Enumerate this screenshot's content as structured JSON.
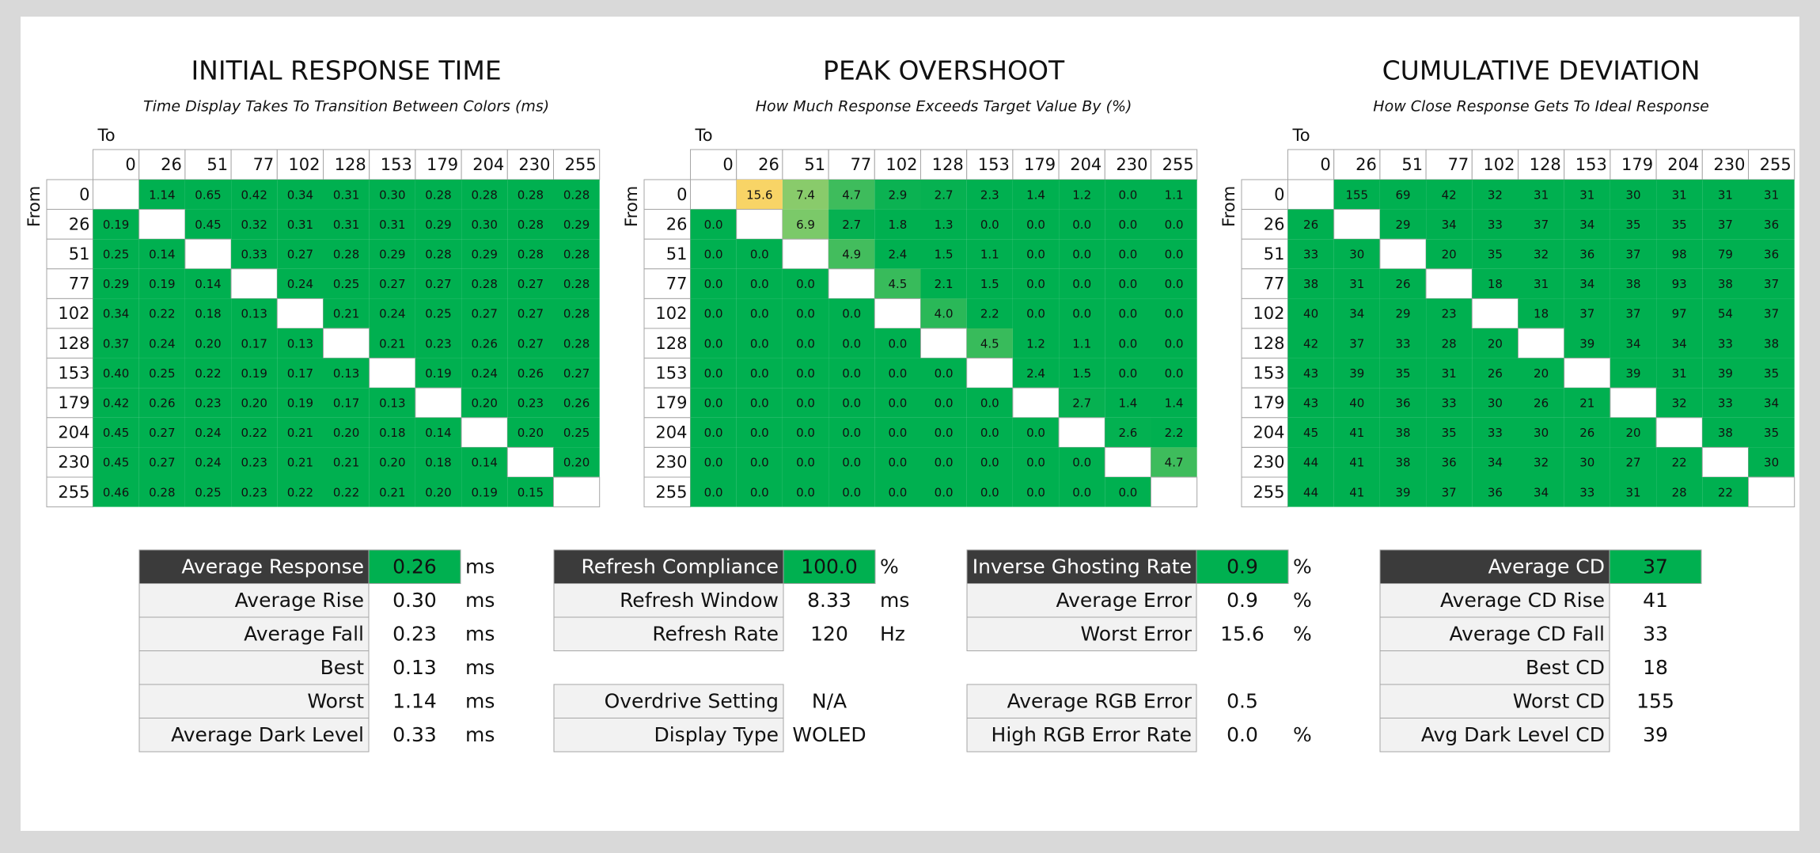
{
  "panels": [
    {
      "title": "INITIAL RESPONSE TIME",
      "subtitle": "Time Display Takes To Transition Between Colors (ms)",
      "to_label": "To",
      "from_label": "From",
      "levels": [
        0,
        26,
        51,
        77,
        102,
        128,
        153,
        179,
        204,
        230,
        255
      ],
      "cells": [
        [
          null,
          "1.14",
          "0.65",
          "0.42",
          "0.34",
          "0.31",
          "0.30",
          "0.28",
          "0.28",
          "0.28",
          "0.28"
        ],
        [
          "0.19",
          null,
          "0.45",
          "0.32",
          "0.31",
          "0.31",
          "0.31",
          "0.29",
          "0.30",
          "0.28",
          "0.29"
        ],
        [
          "0.25",
          "0.14",
          null,
          "0.33",
          "0.27",
          "0.28",
          "0.29",
          "0.28",
          "0.29",
          "0.28",
          "0.28"
        ],
        [
          "0.29",
          "0.19",
          "0.14",
          null,
          "0.24",
          "0.25",
          "0.27",
          "0.27",
          "0.28",
          "0.27",
          "0.28"
        ],
        [
          "0.34",
          "0.22",
          "0.18",
          "0.13",
          null,
          "0.21",
          "0.24",
          "0.25",
          "0.27",
          "0.27",
          "0.28"
        ],
        [
          "0.37",
          "0.24",
          "0.20",
          "0.17",
          "0.13",
          null,
          "0.21",
          "0.23",
          "0.26",
          "0.27",
          "0.28"
        ],
        [
          "0.40",
          "0.25",
          "0.22",
          "0.19",
          "0.17",
          "0.13",
          null,
          "0.19",
          "0.24",
          "0.26",
          "0.27"
        ],
        [
          "0.42",
          "0.26",
          "0.23",
          "0.20",
          "0.19",
          "0.17",
          "0.13",
          null,
          "0.20",
          "0.23",
          "0.26"
        ],
        [
          "0.45",
          "0.27",
          "0.24",
          "0.22",
          "0.21",
          "0.20",
          "0.18",
          "0.14",
          null,
          "0.20",
          "0.25"
        ],
        [
          "0.45",
          "0.27",
          "0.24",
          "0.23",
          "0.21",
          "0.21",
          "0.20",
          "0.18",
          "0.14",
          null,
          "0.20"
        ],
        [
          "0.46",
          "0.28",
          "0.25",
          "0.23",
          "0.22",
          "0.22",
          "0.21",
          "0.20",
          "0.19",
          "0.15",
          null
        ]
      ]
    },
    {
      "title": "PEAK OVERSHOOT",
      "subtitle": "How Much Response Exceeds Target Value By (%)",
      "to_label": "To",
      "from_label": "From",
      "levels": [
        0,
        26,
        51,
        77,
        102,
        128,
        153,
        179,
        204,
        230,
        255
      ],
      "cells": [
        [
          null,
          "15.6",
          "7.4",
          "4.7",
          "2.9",
          "2.7",
          "2.3",
          "1.4",
          "1.2",
          "0.0",
          "1.1"
        ],
        [
          "0.0",
          null,
          "6.9",
          "2.7",
          "1.8",
          "1.3",
          "0.0",
          "0.0",
          "0.0",
          "0.0",
          "0.0"
        ],
        [
          "0.0",
          "0.0",
          null,
          "4.9",
          "2.4",
          "1.5",
          "1.1",
          "0.0",
          "0.0",
          "0.0",
          "0.0"
        ],
        [
          "0.0",
          "0.0",
          "0.0",
          null,
          "4.5",
          "2.1",
          "1.5",
          "0.0",
          "0.0",
          "0.0",
          "0.0"
        ],
        [
          "0.0",
          "0.0",
          "0.0",
          "0.0",
          null,
          "4.0",
          "2.2",
          "0.0",
          "0.0",
          "0.0",
          "0.0"
        ],
        [
          "0.0",
          "0.0",
          "0.0",
          "0.0",
          "0.0",
          null,
          "4.5",
          "1.2",
          "1.1",
          "0.0",
          "0.0"
        ],
        [
          "0.0",
          "0.0",
          "0.0",
          "0.0",
          "0.0",
          "0.0",
          null,
          "2.4",
          "1.5",
          "0.0",
          "0.0"
        ],
        [
          "0.0",
          "0.0",
          "0.0",
          "0.0",
          "0.0",
          "0.0",
          "0.0",
          null,
          "2.7",
          "1.4",
          "1.4"
        ],
        [
          "0.0",
          "0.0",
          "0.0",
          "0.0",
          "0.0",
          "0.0",
          "0.0",
          "0.0",
          null,
          "2.6",
          "2.2"
        ],
        [
          "0.0",
          "0.0",
          "0.0",
          "0.0",
          "0.0",
          "0.0",
          "0.0",
          "0.0",
          "0.0",
          null,
          "4.7"
        ],
        [
          "0.0",
          "0.0",
          "0.0",
          "0.0",
          "0.0",
          "0.0",
          "0.0",
          "0.0",
          "0.0",
          "0.0",
          null
        ]
      ]
    },
    {
      "title": "CUMULATIVE DEVIATION",
      "subtitle": "How Close Response Gets To Ideal Response",
      "to_label": "To",
      "from_label": "From",
      "levels": [
        0,
        26,
        51,
        77,
        102,
        128,
        153,
        179,
        204,
        230,
        255
      ],
      "cells": [
        [
          null,
          155,
          69,
          42,
          32,
          31,
          31,
          30,
          31,
          31,
          31
        ],
        [
          26,
          null,
          29,
          34,
          33,
          37,
          34,
          35,
          35,
          37,
          36
        ],
        [
          33,
          30,
          null,
          20,
          35,
          32,
          36,
          37,
          98,
          79,
          36
        ],
        [
          38,
          31,
          26,
          null,
          18,
          31,
          34,
          38,
          93,
          38,
          37
        ],
        [
          40,
          34,
          29,
          23,
          null,
          18,
          37,
          37,
          97,
          54,
          37
        ],
        [
          42,
          37,
          33,
          28,
          20,
          null,
          39,
          34,
          34,
          33,
          38
        ],
        [
          43,
          39,
          35,
          31,
          26,
          20,
          null,
          39,
          31,
          39,
          35
        ],
        [
          43,
          40,
          36,
          33,
          30,
          26,
          21,
          null,
          32,
          33,
          34
        ],
        [
          45,
          41,
          38,
          35,
          33,
          30,
          26,
          20,
          null,
          38,
          35
        ],
        [
          44,
          41,
          38,
          36,
          34,
          32,
          30,
          27,
          22,
          null,
          30
        ],
        [
          44,
          41,
          39,
          37,
          36,
          34,
          33,
          31,
          28,
          22,
          null
        ]
      ]
    }
  ],
  "stats": [
    {
      "rows": [
        {
          "label": "Average Response",
          "value": "0.26",
          "unit": "ms"
        },
        {
          "label": "Average Rise",
          "value": "0.30",
          "unit": "ms"
        },
        {
          "label": "Average Fall",
          "value": "0.23",
          "unit": "ms"
        },
        {
          "label": "Best",
          "value": "0.13",
          "unit": "ms"
        },
        {
          "label": "Worst",
          "value": "1.14",
          "unit": "ms"
        },
        {
          "label": "Average Dark Level",
          "value": "0.33",
          "unit": "ms"
        }
      ]
    },
    {
      "rows": [
        {
          "label": "Refresh Compliance",
          "value": "100.0",
          "unit": "%"
        },
        {
          "label": "Refresh Window",
          "value": "8.33",
          "unit": "ms"
        },
        {
          "label": "Refresh Rate",
          "value": "120",
          "unit": "Hz"
        },
        null,
        {
          "label": "Overdrive Setting",
          "value": "N/A"
        },
        {
          "label": "Display Type",
          "value": "WOLED"
        }
      ]
    },
    {
      "rows": [
        {
          "label": "Inverse Ghosting Rate",
          "value": "0.9",
          "unit": "%"
        },
        {
          "label": "Average Error",
          "value": "0.9",
          "unit": "%"
        },
        {
          "label": "Worst Error",
          "value": "15.6",
          "unit": "%"
        },
        null,
        {
          "label": "Average RGB Error",
          "value": "0.5"
        },
        {
          "label": "High RGB Error Rate",
          "value": "0.0",
          "unit": "%"
        }
      ]
    },
    {
      "rows": [
        {
          "label": "Average CD",
          "value": 37
        },
        {
          "label": "Average CD Rise",
          "value": 41
        },
        {
          "label": "Average CD Fall",
          "value": 33
        },
        {
          "label": "Best CD",
          "value": 18
        },
        {
          "label": "Worst CD",
          "value": 155
        },
        {
          "label": "Avg Dark Level CD",
          "value": 39
        }
      ]
    }
  ]
}
